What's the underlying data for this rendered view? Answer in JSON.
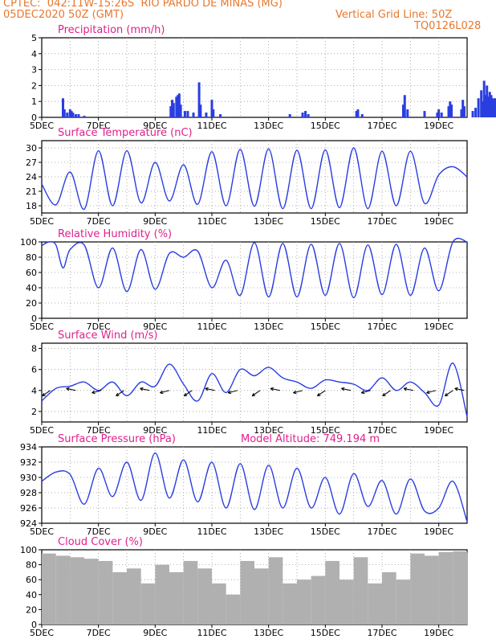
{
  "header": {
    "source_line": "CPTEC:  042:11W-15:26S  RIO PARDO DE MINAS (MG)",
    "date_line": "05DEC2020 50Z (GMT)",
    "grid_note": "Vertical Grid Line: 50Z",
    "model_code": "TQ0126L028"
  },
  "colors": {
    "header": "#e8772e",
    "panel_title": "#e0208c",
    "series": "#2a3ee0",
    "cloud": "#b0b0b0",
    "grid": "#9a9a9a"
  },
  "x_axis": {
    "ticks": [
      "5DEC",
      "7DEC",
      "9DEC",
      "11DEC",
      "13DEC",
      "15DEC",
      "17DEC",
      "19DEC"
    ],
    "tick_days": [
      0,
      2,
      4,
      6,
      8,
      10,
      12,
      14
    ],
    "range_days": [
      0,
      15
    ]
  },
  "chart_data": [
    {
      "id": "precip",
      "type": "bar",
      "title": "Precipitation (mm/h)",
      "ylim": [
        0,
        5
      ],
      "yticks": [
        0,
        1,
        2,
        3,
        4,
        5
      ],
      "points": [
        [
          0.75,
          1.2
        ],
        [
          0.8,
          0.5
        ],
        [
          0.9,
          0.3
        ],
        [
          1.0,
          0.5
        ],
        [
          1.05,
          0.4
        ],
        [
          1.1,
          0.3
        ],
        [
          1.2,
          0.2
        ],
        [
          1.3,
          0.2
        ],
        [
          1.5,
          0.1
        ],
        [
          4.55,
          0.7
        ],
        [
          4.6,
          1.1
        ],
        [
          4.65,
          0.9
        ],
        [
          4.75,
          1.3
        ],
        [
          4.8,
          1.4
        ],
        [
          4.85,
          1.5
        ],
        [
          4.9,
          0.8
        ],
        [
          5.05,
          0.4
        ],
        [
          5.15,
          0.4
        ],
        [
          5.35,
          0.3
        ],
        [
          5.55,
          2.2
        ],
        [
          5.6,
          0.8
        ],
        [
          5.8,
          0.3
        ],
        [
          6.0,
          1.1
        ],
        [
          6.05,
          0.5
        ],
        [
          6.3,
          0.2
        ],
        [
          8.75,
          0.2
        ],
        [
          9.2,
          0.3
        ],
        [
          9.3,
          0.4
        ],
        [
          9.4,
          0.2
        ],
        [
          11.1,
          0.4
        ],
        [
          11.15,
          0.5
        ],
        [
          11.3,
          0.2
        ],
        [
          12.75,
          0.8
        ],
        [
          12.8,
          1.4
        ],
        [
          12.9,
          0.5
        ],
        [
          13.5,
          0.4
        ],
        [
          13.95,
          0.3
        ],
        [
          14.0,
          0.5
        ],
        [
          14.1,
          0.3
        ],
        [
          14.35,
          0.7
        ],
        [
          14.4,
          1.0
        ],
        [
          14.45,
          0.8
        ],
        [
          14.8,
          0.5
        ],
        [
          14.85,
          1.1
        ],
        [
          14.9,
          0.7
        ],
        [
          15.2,
          0.4
        ],
        [
          15.3,
          0.6
        ],
        [
          15.4,
          1.2
        ],
        [
          15.5,
          1.7
        ],
        [
          15.55,
          1.0
        ],
        [
          15.6,
          2.3
        ],
        [
          15.65,
          1.4
        ],
        [
          15.7,
          2.0
        ],
        [
          15.75,
          1.3
        ],
        [
          15.8,
          1.6
        ],
        [
          15.85,
          1.4
        ],
        [
          15.9,
          1.2
        ],
        [
          15.95,
          1.0
        ],
        [
          15.98,
          1.2
        ]
      ]
    },
    {
      "id": "temp",
      "type": "line",
      "title": "Surface Temperature (nC)",
      "ylim": [
        16.5,
        31.5
      ],
      "yticks": [
        18,
        21,
        24,
        27,
        30
      ],
      "x": [
        0,
        0.5,
        1,
        1.5,
        2,
        2.5,
        3,
        3.5,
        4,
        4.5,
        5,
        5.5,
        6,
        6.5,
        7,
        7.5,
        8,
        8.5,
        9,
        9.5,
        10,
        10.5,
        11,
        11.5,
        12,
        12.5,
        13,
        13.5,
        14,
        14.5,
        15
      ],
      "values": [
        22.5,
        18.2,
        25.0,
        17.3,
        29.4,
        18.0,
        29.4,
        18.6,
        27.0,
        19.0,
        26.5,
        18.3,
        29.2,
        18.0,
        29.7,
        17.9,
        29.8,
        17.4,
        29.5,
        17.4,
        29.6,
        17.6,
        30.0,
        17.4,
        29.3,
        18.0,
        29.3,
        18.5,
        24.4,
        26.1,
        24.0
      ]
    },
    {
      "id": "rh",
      "type": "line",
      "title": "Relative Humidity (%)",
      "ylim": [
        0,
        100
      ],
      "yticks": [
        0,
        20,
        40,
        60,
        80,
        100
      ],
      "x": [
        0,
        0.25,
        0.5,
        0.75,
        1,
        1.5,
        2,
        2.5,
        3,
        3.5,
        4,
        4.5,
        5,
        5.5,
        6,
        6.5,
        7,
        7.5,
        8,
        8.5,
        9,
        9.5,
        10,
        10.5,
        11,
        11.5,
        12,
        12.5,
        13,
        13.5,
        14,
        14.5,
        15
      ],
      "values": [
        95,
        100,
        96,
        66,
        90,
        96,
        40,
        92,
        35,
        90,
        38,
        85,
        80,
        88,
        40,
        76,
        30,
        99,
        28,
        98,
        28,
        97,
        30,
        98,
        27,
        96,
        31,
        97,
        30,
        92,
        36,
        100,
        100
      ]
    },
    {
      "id": "wind",
      "type": "line",
      "title": "Surface Wind (m/s)",
      "ylim": [
        1,
        8.5
      ],
      "yticks": [
        2,
        4,
        6,
        8
      ],
      "x": [
        0,
        0.5,
        1,
        1.5,
        2,
        2.5,
        3,
        3.5,
        4,
        4.5,
        5,
        5.5,
        6,
        6.5,
        7,
        7.5,
        8,
        8.5,
        9,
        9.5,
        10,
        10.5,
        11,
        11.5,
        12,
        12.5,
        13,
        13.5,
        14,
        14.5,
        15
      ],
      "values": [
        3.0,
        4.2,
        4.4,
        4.8,
        4.0,
        4.8,
        3.5,
        4.8,
        4.4,
        6.5,
        4.6,
        3.0,
        5.6,
        3.8,
        6.0,
        5.4,
        6.2,
        5.2,
        4.8,
        4.2,
        5.0,
        4.8,
        4.6,
        4.0,
        5.2,
        4.0,
        4.8,
        3.8,
        2.6,
        6.6,
        1.5
      ],
      "barbs_x": [
        0.3,
        1.2,
        2.1,
        2.9,
        3.8,
        4.5,
        5.3,
        6.1,
        6.9,
        7.7,
        8.4,
        9.2,
        10.0,
        10.9,
        11.6,
        12.3,
        13.1,
        13.9,
        14.5,
        14.9
      ]
    },
    {
      "id": "pressure",
      "type": "line",
      "title": "Surface Pressure (hPa)",
      "note": "Model Altitude: 749.194 m",
      "ylim": [
        924,
        934
      ],
      "yticks": [
        924,
        926,
        928,
        930,
        932,
        934
      ],
      "x": [
        0,
        0.5,
        1,
        1.5,
        2,
        2.5,
        3,
        3.5,
        4,
        4.5,
        5,
        5.5,
        6,
        6.5,
        7,
        7.5,
        8,
        8.5,
        9,
        9.5,
        10,
        10.5,
        11,
        11.5,
        12,
        12.5,
        13,
        13.5,
        14,
        14.5,
        15
      ],
      "values": [
        929.5,
        930.7,
        930.4,
        926.5,
        931.2,
        927.5,
        932.0,
        927.0,
        933.2,
        927.3,
        932.3,
        926.8,
        932.0,
        926.0,
        931.8,
        925.8,
        931.6,
        926.0,
        931.2,
        926.0,
        930.0,
        925.2,
        930.5,
        926.2,
        929.6,
        925.2,
        929.8,
        925.6,
        926.0,
        929.5,
        924.2
      ]
    },
    {
      "id": "cloud",
      "type": "bar",
      "title": "Cloud Cover (%)",
      "ylim": [
        0,
        100
      ],
      "yticks": [
        0,
        20,
        40,
        60,
        80,
        100
      ],
      "x": [
        0,
        0.5,
        1,
        1.5,
        2,
        2.5,
        3,
        3.5,
        4,
        4.5,
        5,
        5.5,
        6,
        6.5,
        7,
        7.5,
        8,
        8.5,
        9,
        9.5,
        10,
        10.5,
        11,
        11.5,
        12,
        12.5,
        13,
        13.5,
        14,
        14.5,
        15
      ],
      "values": [
        95,
        92,
        90,
        88,
        85,
        70,
        75,
        55,
        80,
        70,
        85,
        75,
        55,
        40,
        85,
        75,
        90,
        55,
        60,
        65,
        85,
        60,
        90,
        55,
        70,
        60,
        95,
        92,
        97,
        98,
        96
      ]
    }
  ]
}
